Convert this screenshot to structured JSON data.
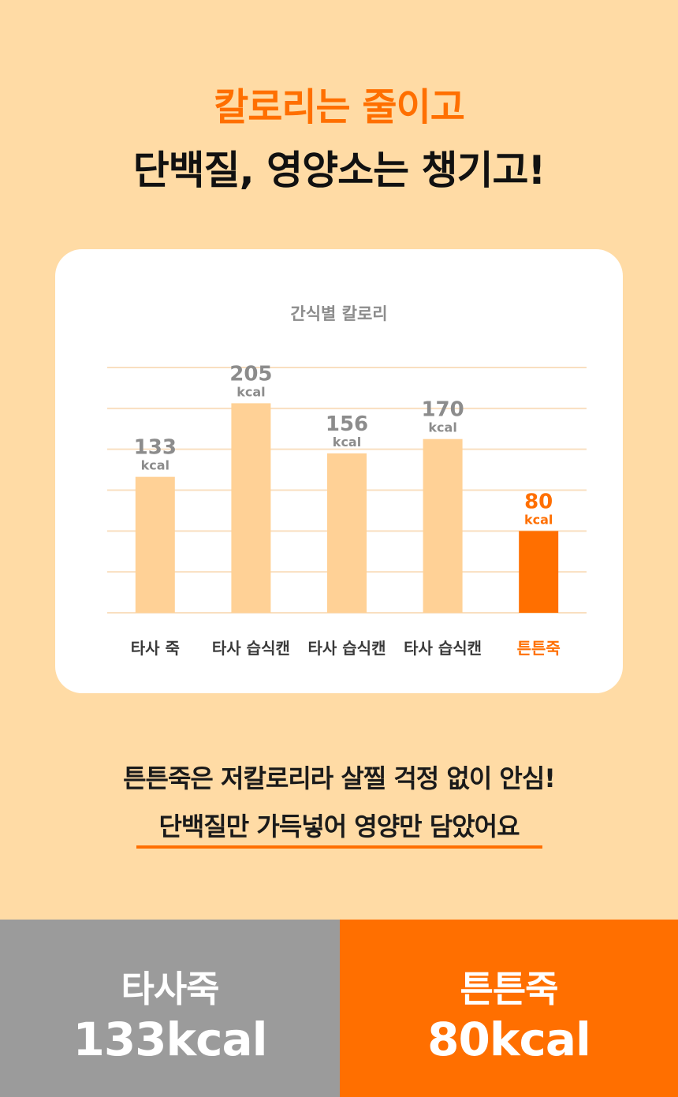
{
  "headline": {
    "line1": "칼로리는 줄이고",
    "line2": "단백질, 영양소는 챙기고!"
  },
  "chart_data": {
    "type": "bar",
    "title": "간식별 칼로리",
    "categories": [
      "타사 죽",
      "타사 습식캔",
      "타사 습식캔",
      "타사 습식캔",
      "튼튼죽"
    ],
    "values": [
      133,
      205,
      156,
      170,
      80
    ],
    "unit": "kcal",
    "ylim": [
      0,
      240
    ],
    "grid": true,
    "colors": {
      "default_bar": "#FFD196",
      "highlight_bar": "#FF6F00",
      "default_label": "#8C8C8C",
      "highlight_label": "#FF6F00",
      "grid": "#F9DFC0",
      "category_text": "#3A3A3A"
    },
    "highlight_index": 4
  },
  "message": {
    "line1": "튼튼죽은 저칼로리라 살찔 걱정 없이 안심!",
    "line2": "단백질만 가득넣어 영양만 담았어요"
  },
  "comparison": {
    "left": {
      "name": "타사죽",
      "value": "133kcal",
      "color": "#9B9B9B"
    },
    "right": {
      "name": "튼튼죽",
      "value": "80kcal",
      "color": "#FF6F00"
    }
  }
}
